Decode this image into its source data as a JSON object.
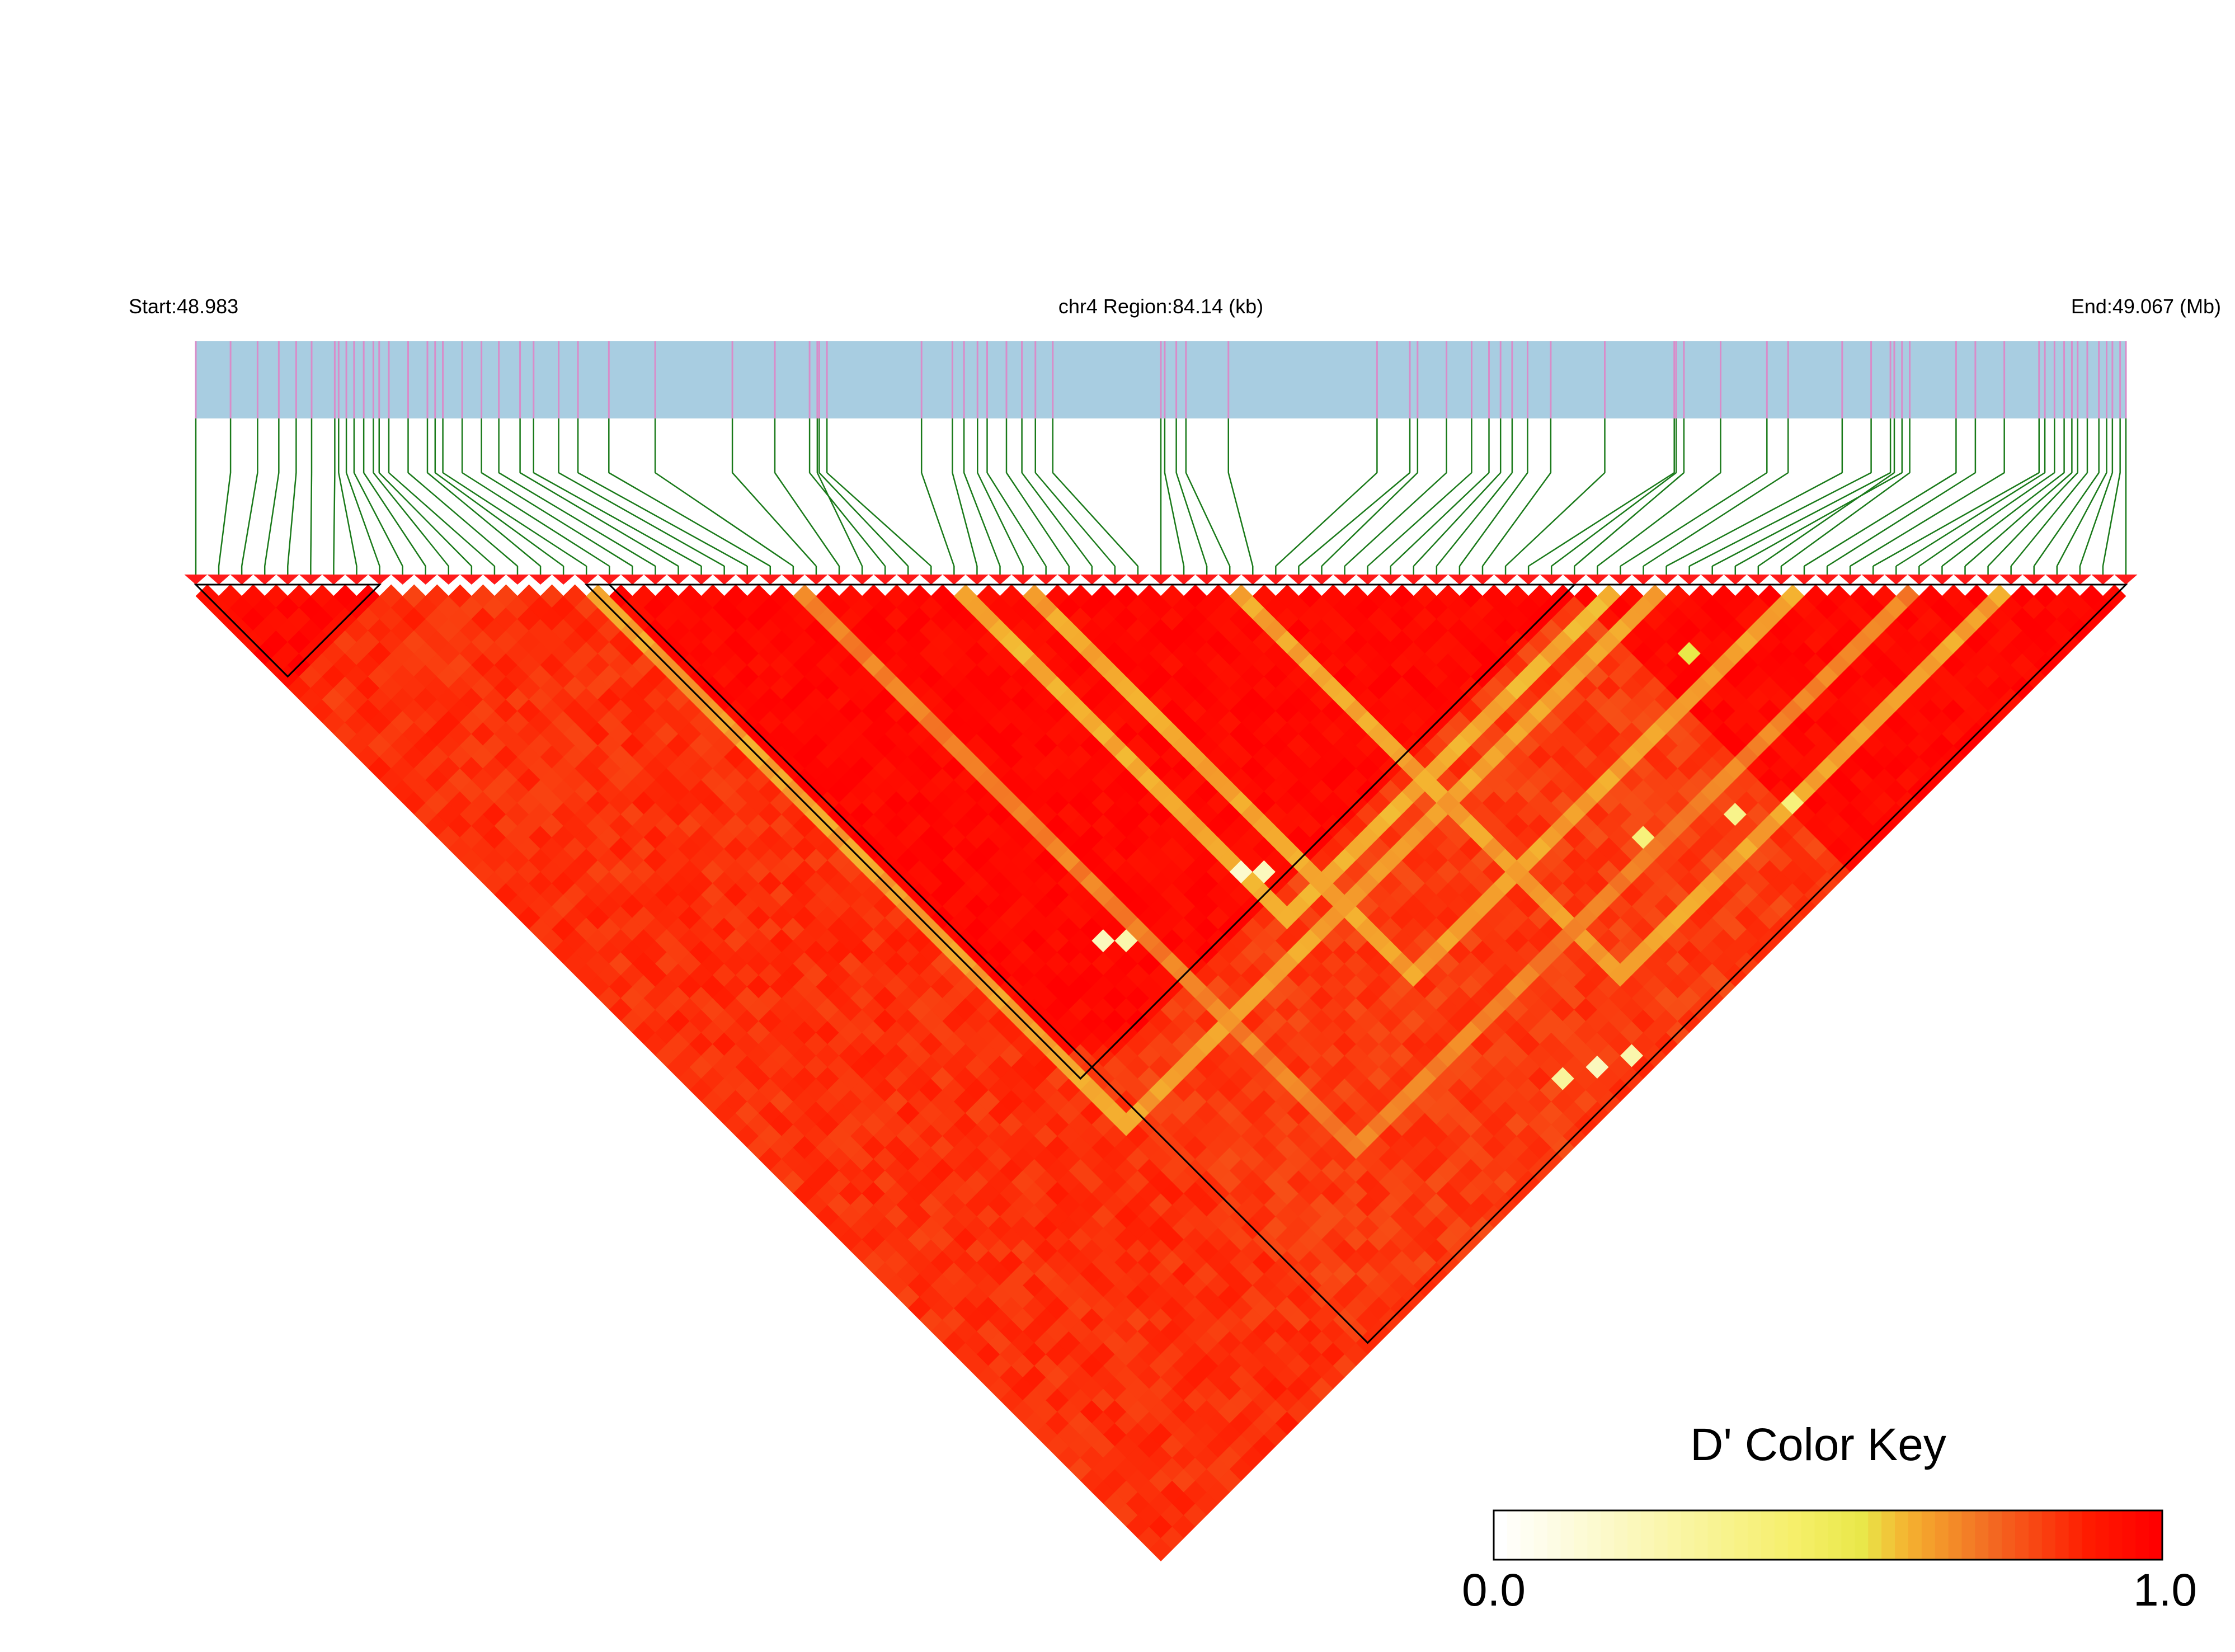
{
  "header": {
    "start_label": "Start:48.983",
    "region_label": "chr4 Region:84.14 (kb)",
    "end_label": "End:49.067 (Mb)"
  },
  "colors": {
    "gene_bar": "#a8cde1",
    "snp_tick": "#d98cc9",
    "connector": "#1a7a1a",
    "marker": "#ff1a1a",
    "high_ld": "#ff0d00",
    "moderate_ld": "#f03a14",
    "low_ld": "#f5a33a",
    "very_low_ld": "#ffff8c",
    "block_outline": "#000000"
  },
  "ld_plot": {
    "snp_count": 85,
    "snp_positions_rel": [
      0.0,
      0.018,
      0.032,
      0.043,
      0.052,
      0.06,
      0.072,
      0.074,
      0.078,
      0.082,
      0.087,
      0.092,
      0.095,
      0.1,
      0.11,
      0.12,
      0.124,
      0.128,
      0.138,
      0.148,
      0.157,
      0.168,
      0.175,
      0.188,
      0.198,
      0.214,
      0.238,
      0.278,
      0.3,
      0.322,
      0.318,
      0.323,
      0.327,
      0.376,
      0.392,
      0.398,
      0.405,
      0.41,
      0.42,
      0.428,
      0.435,
      0.444,
      0.5,
      0.502,
      0.508,
      0.513,
      0.535,
      0.612,
      0.629,
      0.633,
      0.648,
      0.661,
      0.67,
      0.676,
      0.682,
      0.69,
      0.702,
      0.73,
      0.766,
      0.767,
      0.771,
      0.79,
      0.814,
      0.825,
      0.853,
      0.868,
      0.878,
      0.884,
      0.88,
      0.888,
      0.912,
      0.922,
      0.937,
      0.955,
      0.958,
      0.963,
      0.968,
      0.972,
      0.975,
      0.98,
      0.986,
      0.99,
      0.993,
      0.997,
      1.0
    ],
    "blocks": [
      {
        "first_snp": 0,
        "last_snp": 8
      },
      {
        "first_snp": 17,
        "last_snp": 60
      },
      {
        "first_snp": 18,
        "last_snp": 84
      }
    ],
    "low_ld_runs": [
      {
        "first_snp": 17,
        "last_snp": 64,
        "value": 0.62
      },
      {
        "first_snp": 33,
        "last_snp": 62,
        "value": 0.6
      },
      {
        "first_snp": 36,
        "last_snp": 70,
        "value": 0.62
      },
      {
        "first_snp": 26,
        "last_snp": 75,
        "value": 0.68
      },
      {
        "first_snp": 45,
        "last_snp": 79,
        "value": 0.62
      }
    ],
    "very_low_pairs": [
      {
        "i": 24,
        "j": 55,
        "value": 0.2
      },
      {
        "i": 25,
        "j": 56,
        "value": 0.25
      },
      {
        "i": 33,
        "j": 58,
        "value": 0.15
      },
      {
        "i": 34,
        "j": 59,
        "value": 0.2
      },
      {
        "i": 38,
        "j": 81,
        "value": 0.3
      },
      {
        "i": 40,
        "j": 82,
        "value": 0.2
      },
      {
        "i": 42,
        "j": 83,
        "value": 0.25
      },
      {
        "i": 52,
        "j": 74,
        "value": 0.4
      },
      {
        "i": 57,
        "j": 77,
        "value": 0.35
      },
      {
        "i": 60,
        "j": 79,
        "value": 0.4
      },
      {
        "i": 62,
        "j": 68,
        "value": 0.55
      }
    ]
  },
  "color_key": {
    "title": "D' Color Key",
    "min_label": "0.0",
    "max_label": "1.0",
    "stops": [
      "#ffffff",
      "#f6ef6a",
      "#e9e84a",
      "#f4b330",
      "#f36a22",
      "#ff1a00",
      "#ff0000"
    ]
  }
}
